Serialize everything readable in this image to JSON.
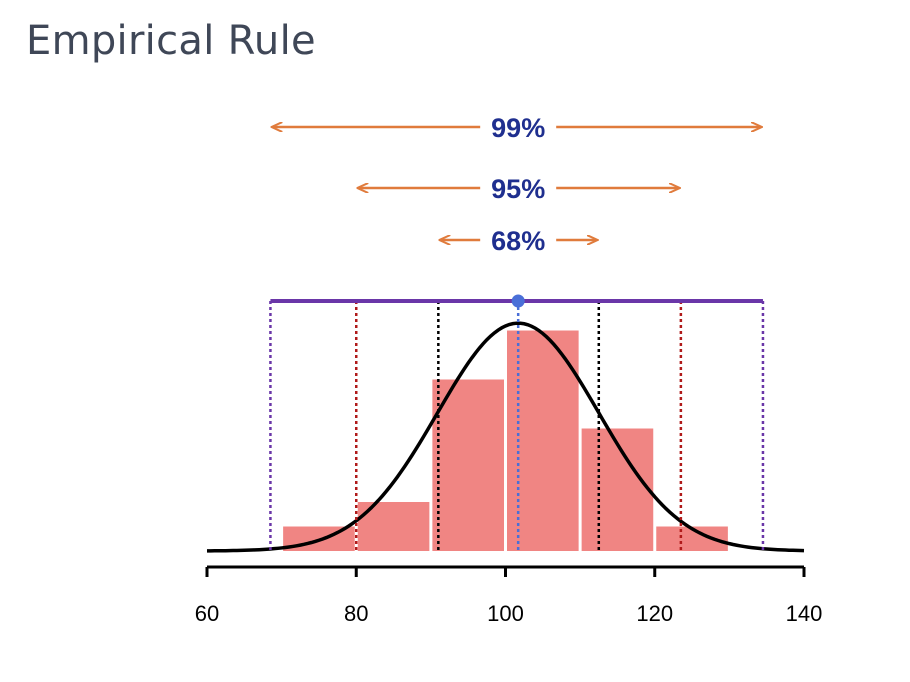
{
  "title": "Empirical Rule",
  "colors": {
    "bar": "#f08583",
    "curve": "#000000",
    "arrow": "#e07b3c",
    "label": "#1f2f8f",
    "band99": "#6a36a8",
    "band95": "#b01a1a",
    "band68": "#000000",
    "mean": "#4a6fd8"
  },
  "chart_data": {
    "type": "bar",
    "xlim": [
      60,
      140
    ],
    "x_ticks": [
      60,
      80,
      100,
      120,
      140
    ],
    "x_tick_labels": [
      "60",
      "80",
      "100",
      "120",
      "140"
    ],
    "bars": [
      {
        "x_start": 70,
        "x_end": 80,
        "value": 1
      },
      {
        "x_start": 80,
        "x_end": 90,
        "value": 2
      },
      {
        "x_start": 90,
        "x_end": 100,
        "value": 7
      },
      {
        "x_start": 100,
        "x_end": 110,
        "value": 9
      },
      {
        "x_start": 110,
        "x_end": 120,
        "value": 5
      },
      {
        "x_start": 120,
        "x_end": 130,
        "value": 1
      }
    ],
    "ylim": [
      0,
      10
    ],
    "normal_curve": {
      "mean": 101.7,
      "sd": 10.8,
      "peak_value": 9.3
    },
    "mean": 101.7,
    "intervals": [
      {
        "label": "68%",
        "low": 91,
        "high": 112.5
      },
      {
        "label": "95%",
        "low": 80,
        "high": 123.5
      },
      {
        "label": "99%",
        "low": 68.5,
        "high": 134.5
      }
    ]
  }
}
